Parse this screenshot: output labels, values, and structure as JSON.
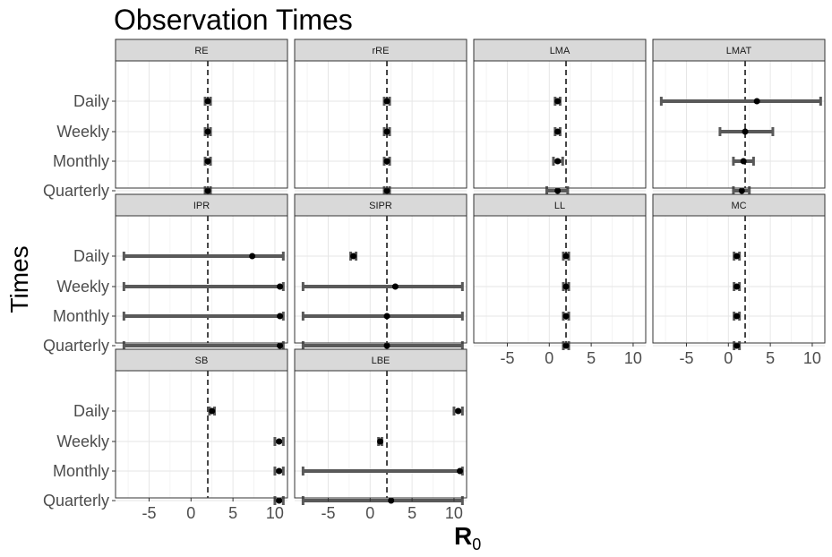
{
  "chart_data": {
    "type": "errorbar",
    "title": "Observation Times",
    "xlabel": "R",
    "xlabel_subscript": "0",
    "ylabel": "Times",
    "categories": [
      "Daily",
      "Weekly",
      "Monthly",
      "Quarterly"
    ],
    "x_ticks": [
      "-5",
      "0",
      "5",
      "10"
    ],
    "xlim": [
      -9,
      11.5
    ],
    "reference_line_x": 2,
    "grid": true,
    "panels": [
      {
        "name": "RE",
        "points": [
          {
            "time": "Daily",
            "estimate": 2,
            "lower": 2,
            "upper": 2
          },
          {
            "time": "Weekly",
            "estimate": 2,
            "lower": 2,
            "upper": 2
          },
          {
            "time": "Monthly",
            "estimate": 2,
            "lower": 2,
            "upper": 2
          },
          {
            "time": "Quarterly",
            "estimate": 2,
            "lower": 2,
            "upper": 2
          }
        ]
      },
      {
        "name": "rRE",
        "points": [
          {
            "time": "Daily",
            "estimate": 2,
            "lower": 2,
            "upper": 2
          },
          {
            "time": "Weekly",
            "estimate": 2,
            "lower": 2,
            "upper": 2
          },
          {
            "time": "Monthly",
            "estimate": 2,
            "lower": 2,
            "upper": 2
          },
          {
            "time": "Quarterly",
            "estimate": 2,
            "lower": 2,
            "upper": 2
          }
        ]
      },
      {
        "name": "LMA",
        "points": [
          {
            "time": "Daily",
            "estimate": 1,
            "lower": 0.7,
            "upper": 1.3
          },
          {
            "time": "Weekly",
            "estimate": 1,
            "lower": 0.7,
            "upper": 1.3
          },
          {
            "time": "Monthly",
            "estimate": 1,
            "lower": 0.5,
            "upper": 1.6
          },
          {
            "time": "Quarterly",
            "estimate": 1,
            "lower": -0.3,
            "upper": 2.2
          }
        ]
      },
      {
        "name": "LMAT",
        "points": [
          {
            "time": "Daily",
            "estimate": 3.4,
            "lower": -8,
            "upper": 11
          },
          {
            "time": "Weekly",
            "estimate": 2.0,
            "lower": -1.0,
            "upper": 5.3
          },
          {
            "time": "Monthly",
            "estimate": 1.8,
            "lower": 0.6,
            "upper": 3.0
          },
          {
            "time": "Quarterly",
            "estimate": 1.6,
            "lower": 0.6,
            "upper": 2.5
          }
        ]
      },
      {
        "name": "IPR",
        "points": [
          {
            "time": "Daily",
            "estimate": 7.3,
            "lower": -8,
            "upper": 11
          },
          {
            "time": "Weekly",
            "estimate": 10.6,
            "lower": -8,
            "upper": 11
          },
          {
            "time": "Monthly",
            "estimate": 10.6,
            "lower": -8,
            "upper": 11
          },
          {
            "time": "Quarterly",
            "estimate": 10.6,
            "lower": -8,
            "upper": 11
          }
        ]
      },
      {
        "name": "SIPR",
        "points": [
          {
            "time": "Daily",
            "estimate": -2,
            "lower": -2,
            "upper": -2
          },
          {
            "time": "Weekly",
            "estimate": 3,
            "lower": -8,
            "upper": 11
          },
          {
            "time": "Monthly",
            "estimate": 2,
            "lower": -8,
            "upper": 11
          },
          {
            "time": "Quarterly",
            "estimate": 2,
            "lower": -8,
            "upper": 11
          }
        ]
      },
      {
        "name": "LL",
        "points": [
          {
            "time": "Daily",
            "estimate": 2,
            "lower": 2,
            "upper": 2
          },
          {
            "time": "Weekly",
            "estimate": 2,
            "lower": 2,
            "upper": 2
          },
          {
            "time": "Monthly",
            "estimate": 2,
            "lower": 2,
            "upper": 2
          },
          {
            "time": "Quarterly",
            "estimate": 2,
            "lower": 2,
            "upper": 2
          }
        ]
      },
      {
        "name": "MC",
        "points": [
          {
            "time": "Daily",
            "estimate": 1,
            "lower": 1,
            "upper": 1
          },
          {
            "time": "Weekly",
            "estimate": 1,
            "lower": 1,
            "upper": 1
          },
          {
            "time": "Monthly",
            "estimate": 1,
            "lower": 1,
            "upper": 1
          },
          {
            "time": "Quarterly",
            "estimate": 1,
            "lower": 1,
            "upper": 1
          }
        ]
      },
      {
        "name": "SB",
        "points": [
          {
            "time": "Daily",
            "estimate": 2.5,
            "lower": 2.2,
            "upper": 2.8
          },
          {
            "time": "Weekly",
            "estimate": 10.5,
            "lower": 10,
            "upper": 11
          },
          {
            "time": "Monthly",
            "estimate": 10.5,
            "lower": 10,
            "upper": 11
          },
          {
            "time": "Quarterly",
            "estimate": 10.5,
            "lower": 10,
            "upper": 11
          }
        ]
      },
      {
        "name": "LBE",
        "points": [
          {
            "time": "Daily",
            "estimate": 10.5,
            "lower": 10,
            "upper": 11
          },
          {
            "time": "Weekly",
            "estimate": 1.2,
            "lower": 1.0,
            "upper": 1.4
          },
          {
            "time": "Monthly",
            "estimate": 10.7,
            "lower": -8,
            "upper": 11
          },
          {
            "time": "Quarterly",
            "estimate": 2.5,
            "lower": -8,
            "upper": 11
          }
        ]
      }
    ]
  }
}
